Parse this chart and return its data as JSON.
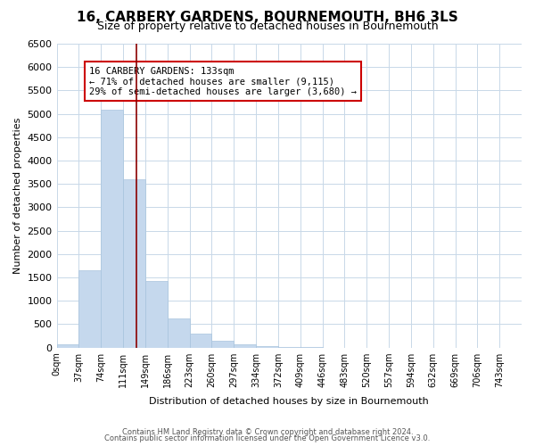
{
  "title": "16, CARBERY GARDENS, BOURNEMOUTH, BH6 3LS",
  "subtitle": "Size of property relative to detached houses in Bournemouth",
  "bar_labels": [
    "0sqm",
    "37sqm",
    "74sqm",
    "111sqm",
    "149sqm",
    "186sqm",
    "223sqm",
    "260sqm",
    "297sqm",
    "334sqm",
    "372sqm",
    "409sqm",
    "446sqm",
    "483sqm",
    "520sqm",
    "557sqm",
    "594sqm",
    "632sqm",
    "669sqm",
    "706sqm",
    "743sqm"
  ],
  "bar_heights": [
    60,
    1650,
    5080,
    3600,
    1430,
    620,
    300,
    145,
    65,
    20,
    10,
    5,
    0,
    0,
    0,
    0,
    0,
    0,
    0,
    0,
    0
  ],
  "bar_color": "#c5d8ed",
  "bar_edgecolor": "#a8c4de",
  "ylabel": "Number of detached properties",
  "xlabel": "Distribution of detached houses by size in Bournemouth",
  "ylim": [
    0,
    6500
  ],
  "yticks": [
    0,
    500,
    1000,
    1500,
    2000,
    2500,
    3000,
    3500,
    4000,
    4500,
    5000,
    5500,
    6000,
    6500
  ],
  "property_line_label": "16 CARBERY GARDENS: 133sqm",
  "annotation_line1": "← 71% of detached houses are smaller (9,115)",
  "annotation_line2": "29% of semi-detached houses are larger (3,680) →",
  "annotation_box_color": "#ffffff",
  "annotation_box_edgecolor": "#cc0000",
  "vline_color": "#8b0000",
  "footer1": "Contains HM Land Registry data © Crown copyright and database right 2024.",
  "footer2": "Contains public sector information licensed under the Open Government Licence v3.0.",
  "background_color": "#ffffff",
  "grid_color": "#c8d8e8"
}
